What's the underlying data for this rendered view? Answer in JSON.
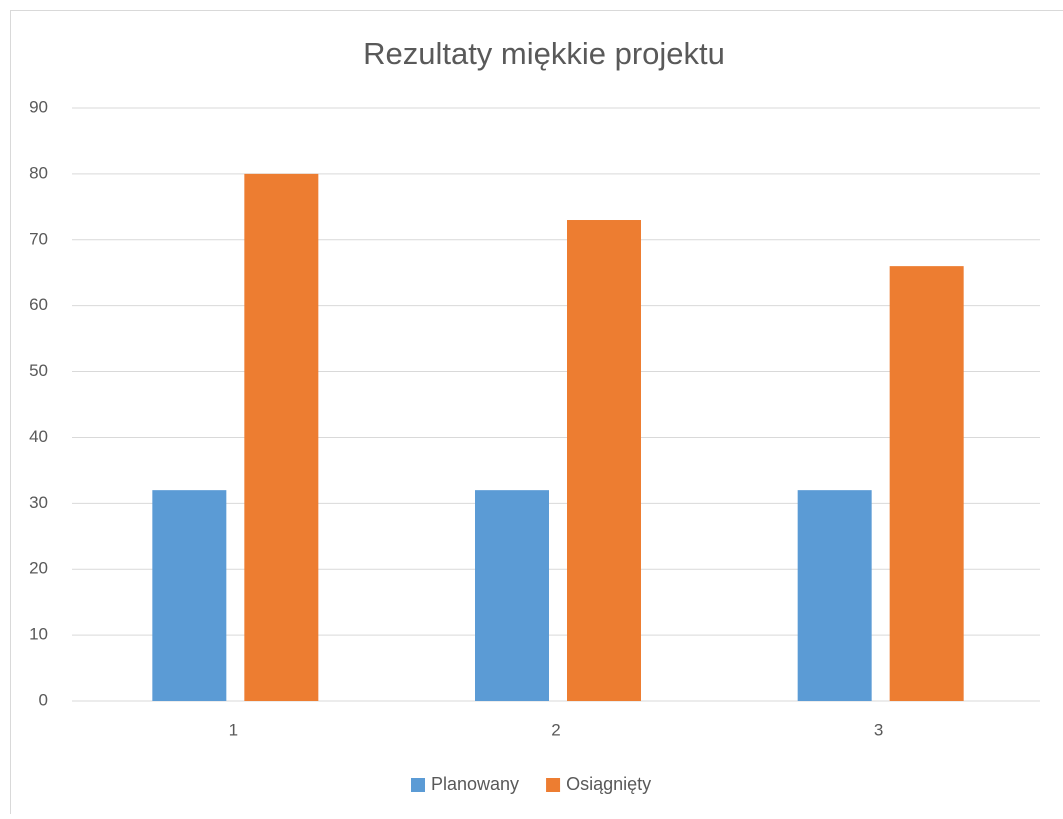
{
  "chart_data": {
    "type": "bar",
    "title": "Rezultaty miękkie projektu",
    "categories": [
      "1",
      "2",
      "3"
    ],
    "series": [
      {
        "name": "Planowany",
        "color": "#5b9bd5",
        "values": [
          32,
          32,
          32
        ]
      },
      {
        "name": "Osiągnięty",
        "color": "#ed7d31",
        "values": [
          80,
          73,
          66
        ]
      }
    ],
    "ylim": [
      0,
      90
    ],
    "yticks": [
      0,
      10,
      20,
      30,
      40,
      50,
      60,
      70,
      80,
      90
    ],
    "grid": true,
    "legend": "bottom"
  }
}
